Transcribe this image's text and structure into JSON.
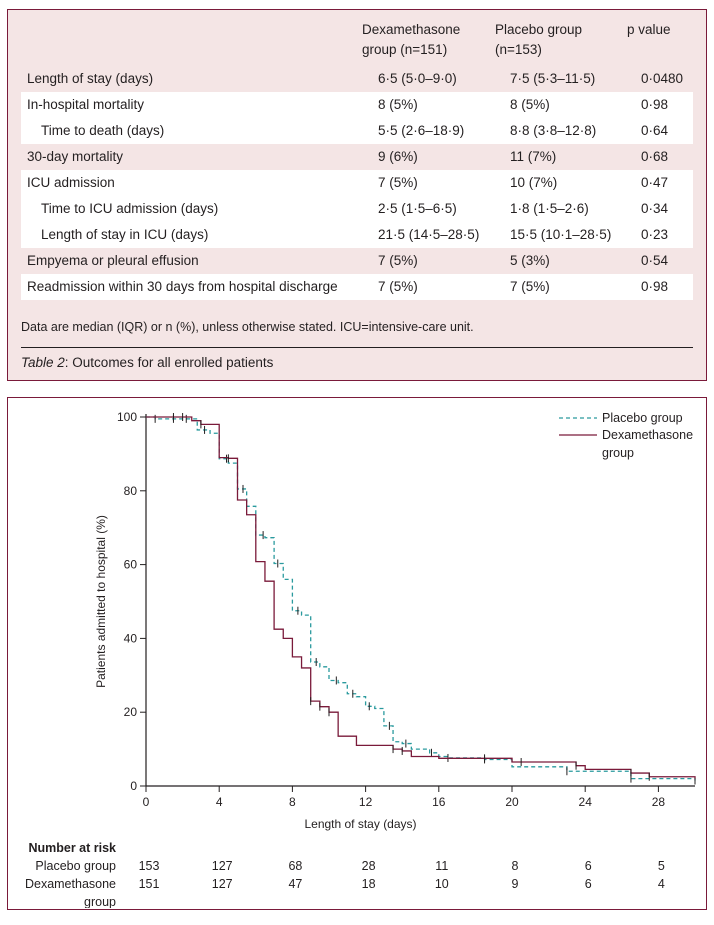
{
  "table": {
    "headers": [
      "",
      "Dexamethasone group (n=151)",
      "Placebo group (n=153)",
      "p value"
    ],
    "header_lines": {
      "dexa": [
        "Dexamethasone",
        "group (n=151)"
      ],
      "placebo": [
        "Placebo group",
        "(n=153)"
      ],
      "p": [
        "p value"
      ]
    },
    "rows": [
      {
        "label": "Length of stay (days)",
        "dexa": "6·5 (5·0–9·0)",
        "placebo": "7·5 (5·3–11·5)",
        "p": "0·0480",
        "indent": false,
        "shade": true
      },
      {
        "label": "In-hospital mortality",
        "dexa": "8 (5%)",
        "placebo": "8 (5%)",
        "p": "0·98",
        "indent": false,
        "shade": false
      },
      {
        "label": "Time to death (days)",
        "dexa": "5·5 (2·6–18·9)",
        "placebo": "8·8 (3·8–12·8)",
        "p": "0·64",
        "indent": true,
        "shade": false
      },
      {
        "label": "30-day mortality",
        "dexa": "9 (6%)",
        "placebo": "11 (7%)",
        "p": "0·68",
        "indent": false,
        "shade": true
      },
      {
        "label": "ICU admission",
        "dexa": "7 (5%)",
        "placebo": "10 (7%)",
        "p": "0·47",
        "indent": false,
        "shade": false
      },
      {
        "label": "Time to ICU admission (days)",
        "dexa": "2·5 (1·5–6·5)",
        "placebo": "1·8 (1·5–2·6)",
        "p": "0·34",
        "indent": true,
        "shade": false
      },
      {
        "label": "Length of stay in ICU (days)",
        "dexa": "21·5 (14·5–28·5)",
        "placebo": "15·5 (10·1–28·5)",
        "p": "0·23",
        "indent": true,
        "shade": false
      },
      {
        "label": "Empyema or pleural effusion",
        "dexa": "7 (5%)",
        "placebo": "5 (3%)",
        "p": "0·54",
        "indent": false,
        "shade": true
      },
      {
        "label": "Readmission within 30 days from hospital discharge",
        "dexa": "7 (5%)",
        "placebo": "7 (5%)",
        "p": "0·98",
        "indent": false,
        "shade": false
      }
    ],
    "footnote": "Data are median (IQR) or n (%), unless otherwise stated. ICU=intensive-care unit.",
    "caption_label": "Table 2",
    "caption_text": ": Outcomes for all enrolled patients"
  },
  "colors": {
    "panel_border": "#7a1a3a",
    "panel_bg": "#f4e5e5",
    "dexamethasone_line": "#7a1a3a",
    "placebo_line": "#2a9a9e"
  },
  "chart_data": {
    "type": "line",
    "subtype": "kaplan-meier step",
    "title": "",
    "xlabel": "Length of stay (days)",
    "ylabel": "Patients admitted to hospital (%)",
    "xlim": [
      0,
      30
    ],
    "ylim": [
      0,
      100
    ],
    "xticks": [
      0,
      4,
      8,
      12,
      16,
      20,
      24,
      28
    ],
    "yticks": [
      0,
      20,
      40,
      60,
      80,
      100
    ],
    "grid": false,
    "legend_position": "top-right",
    "legend": [
      "Placebo group",
      "Dexamethasone group"
    ],
    "legend_lines": [
      [
        "Placebo group"
      ],
      [
        "Dexamethasone",
        "group"
      ]
    ],
    "series": [
      {
        "name": "Placebo group",
        "style": "dashed",
        "x": [
          0,
          0.5,
          2.8,
          3.5,
          4.0,
          4.5,
          5.0,
          5.5,
          6.0,
          6.5,
          7.0,
          7.5,
          8.0,
          8.5,
          9.0,
          9.5,
          10.0,
          10.5,
          11.0,
          11.5,
          12.0,
          12.5,
          13.0,
          13.5,
          14.0,
          14.5,
          15.5,
          16.0,
          16.5,
          18.5,
          20.0,
          23.0,
          26.5,
          30.0
        ],
        "y": [
          100,
          99.5,
          96.5,
          95.6,
          88.7,
          87.5,
          80.5,
          75.8,
          68.0,
          67.3,
          60.3,
          56.0,
          47.5,
          46.3,
          33.6,
          32.3,
          28.6,
          28.0,
          25.0,
          24.2,
          21.6,
          21.0,
          16.3,
          12.0,
          11.5,
          10.0,
          9.0,
          8.0,
          7.6,
          7.2,
          5.2,
          4.0,
          2.0,
          1.5
        ],
        "censor_x": [
          0.5,
          1.5,
          2.2,
          3.2,
          4.4,
          5.3,
          6.4,
          7.2,
          8.3,
          9.3,
          10.4,
          11.3,
          12.2,
          13.3,
          14.2,
          15.6,
          16.5,
          18.5,
          23.0,
          26.5,
          30.0
        ]
      },
      {
        "name": "Dexamethasone group",
        "style": "solid",
        "x": [
          0,
          2.5,
          3.0,
          4.0,
          4.5,
          5.0,
          5.5,
          6.0,
          6.5,
          7.0,
          7.5,
          8.0,
          8.5,
          9.0,
          9.5,
          10.0,
          10.5,
          11.5,
          13.5,
          14.0,
          14.5,
          16.0,
          20.0,
          23.5,
          24.0,
          26.5,
          27.5,
          30.0
        ],
        "y": [
          100,
          99.0,
          98.0,
          89.0,
          88.8,
          77.5,
          73.5,
          60.8,
          55.5,
          42.5,
          40.0,
          35.0,
          32.0,
          23.0,
          21.5,
          20.0,
          13.5,
          11.0,
          10.0,
          9.5,
          8.0,
          7.5,
          6.5,
          5.5,
          4.5,
          3.5,
          2.5,
          2.0
        ],
        "censor_x": [
          1.5,
          2.0,
          3.0,
          4.5,
          9.0,
          9.5,
          10.0,
          13.5,
          14.0,
          18.5,
          20.5,
          23.5,
          26.5,
          27.5
        ]
      }
    ],
    "number_at_risk": {
      "title": "Number at risk",
      "times": [
        0,
        4,
        8,
        12,
        16,
        20,
        24,
        28
      ],
      "groups": [
        {
          "label": [
            "Placebo group"
          ],
          "values": [
            153,
            127,
            68,
            28,
            11,
            8,
            6,
            5
          ]
        },
        {
          "label": [
            "Dexamethasone",
            "group"
          ],
          "values": [
            151,
            127,
            47,
            18,
            10,
            9,
            6,
            4
          ]
        }
      ]
    }
  }
}
